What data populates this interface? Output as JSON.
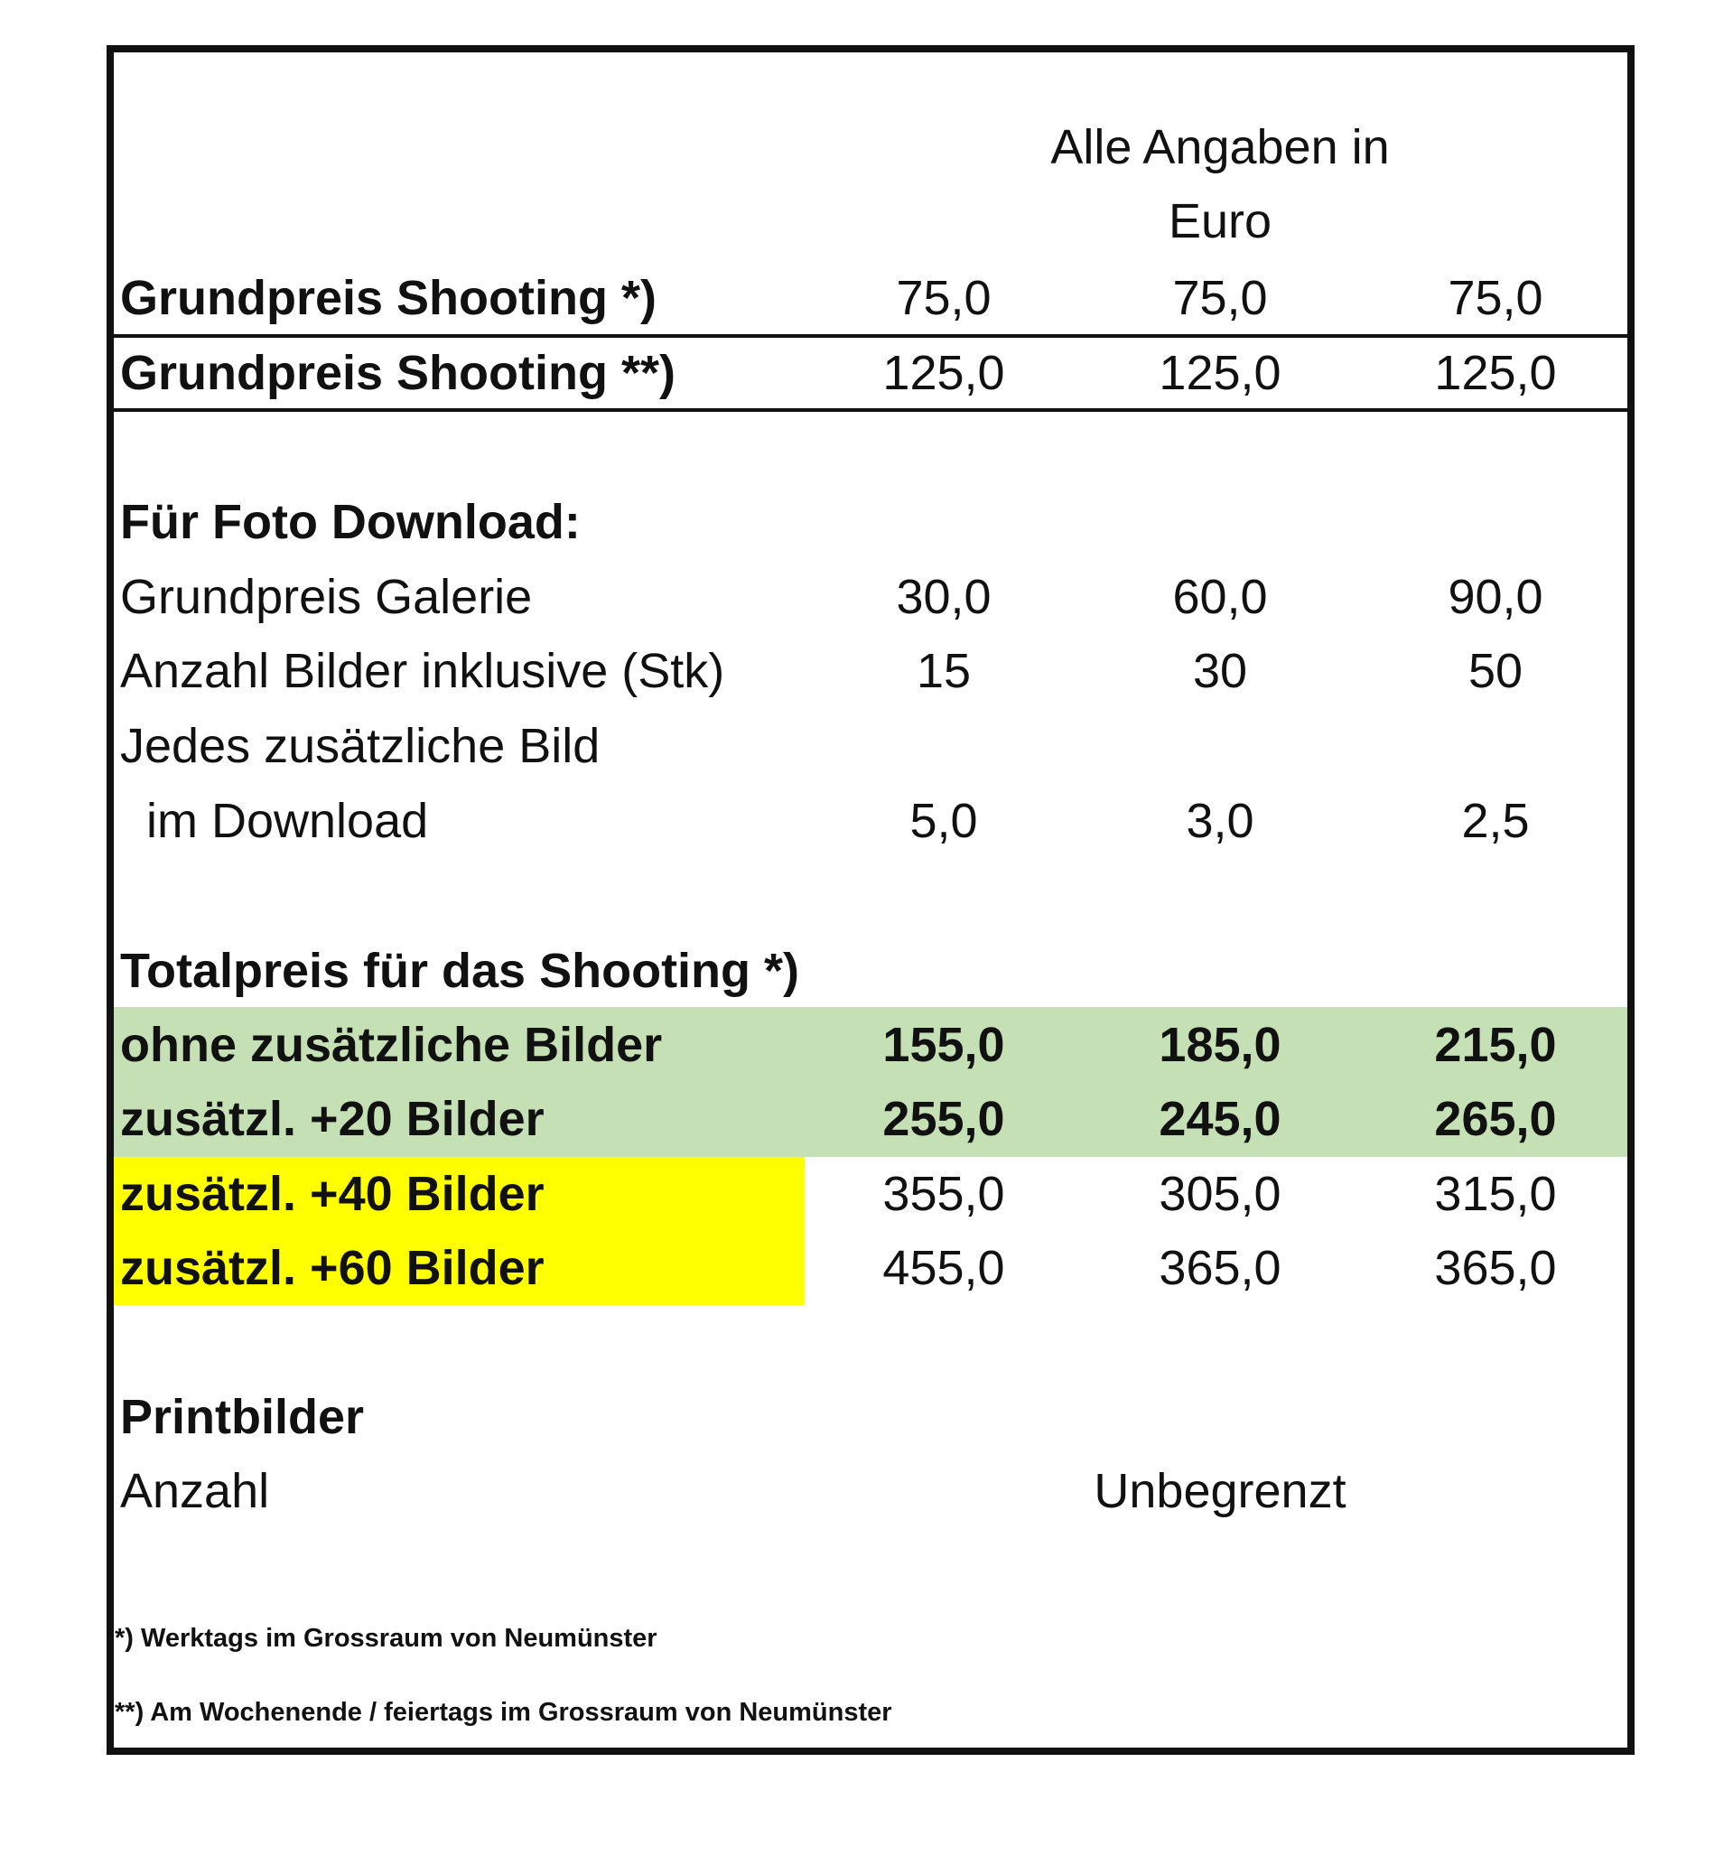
{
  "header": {
    "currency_note": "Alle Angaben in Euro"
  },
  "base_prices": [
    {
      "label": "Grundpreis Shooting *)",
      "values": [
        "75,0",
        "75,0",
        "75,0"
      ]
    },
    {
      "label": "Grundpreis Shooting **)",
      "values": [
        "125,0",
        "125,0",
        "125,0"
      ]
    }
  ],
  "download": {
    "heading": "Für Foto Download:",
    "rows": [
      {
        "label": "Grundpreis Galerie",
        "values": [
          "30,0",
          "60,0",
          "90,0"
        ]
      },
      {
        "label": "Anzahl Bilder inklusive (Stk)",
        "values": [
          "15",
          "30",
          "50"
        ]
      },
      {
        "label": "Jedes zusätzliche Bild",
        "label2": "im Download",
        "values": [
          "5,0",
          "3,0",
          "2,5"
        ]
      }
    ]
  },
  "total": {
    "heading": "Totalpreis für das Shooting *)",
    "rows": [
      {
        "label": "ohne zusätzliche Bilder",
        "values": [
          "155,0",
          "185,0",
          "215,0"
        ]
      },
      {
        "label": "zusätzl. +20 Bilder",
        "values": [
          "255,0",
          "245,0",
          "265,0"
        ]
      },
      {
        "label": "zusätzl. +40 Bilder",
        "values": [
          "355,0",
          "305,0",
          "315,0"
        ]
      },
      {
        "label": "zusätzl. +60 Bilder",
        "values": [
          "455,0",
          "365,0",
          "365,0"
        ]
      }
    ],
    "highlight_colors": {
      "green": "#c5e0b4",
      "yellow": "#ffff00"
    }
  },
  "print": {
    "heading": "Printbilder",
    "label": "Anzahl",
    "value": "Unbegrenzt"
  },
  "footnotes": [
    "*) Werktags im Grossraum von Neumünster",
    "**) Am Wochenende / feiertags im Grossraum von Neumünster"
  ]
}
